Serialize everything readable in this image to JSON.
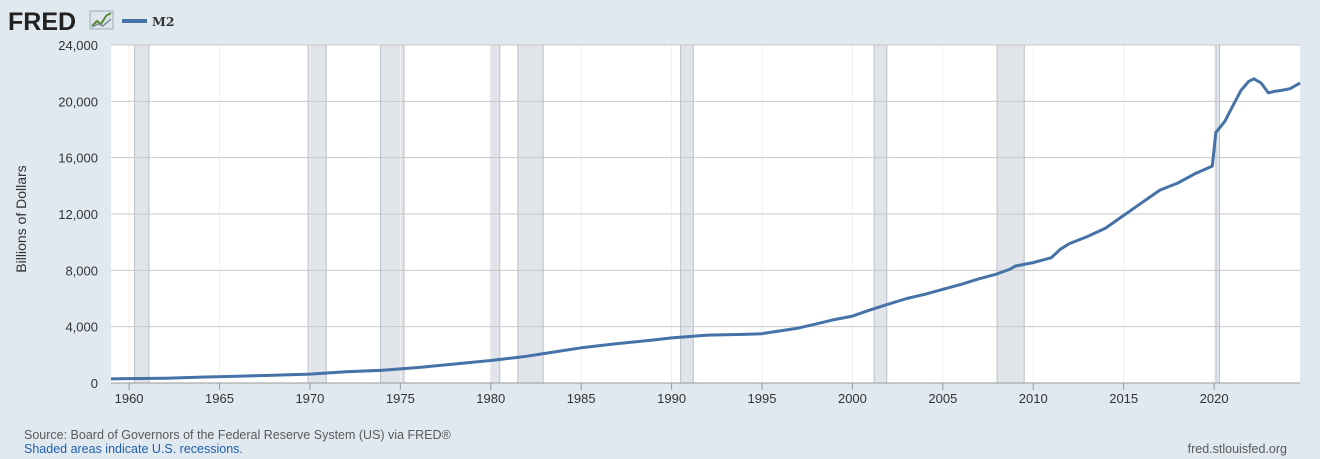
{
  "brand": {
    "name": "FRED"
  },
  "legend": {
    "series_label": "M2",
    "line_color": "#4572a7"
  },
  "colors": {
    "line": "#4572a7",
    "recession": "#e1e5e9",
    "plot_bg": "#ffffff",
    "page_bg": "#e1e9f0"
  },
  "footer": {
    "source": "Source: Board of Governors of the Federal Reserve System (US) via FRED®",
    "note": "Shaded areas indicate U.S. recessions.",
    "site": "fred.stlouisfed.org"
  },
  "chart_data": {
    "type": "line",
    "title": "",
    "xlabel": "",
    "ylabel": "Billions of Dollars",
    "xlim": [
      1959.0,
      2024.75
    ],
    "ylim": [
      0,
      24000
    ],
    "grid": true,
    "legend_position": "top-left",
    "x_ticks": [
      1960,
      1965,
      1970,
      1975,
      1980,
      1985,
      1990,
      1995,
      2000,
      2005,
      2010,
      2015,
      2020
    ],
    "y_ticks": [
      0,
      4000,
      8000,
      12000,
      16000,
      20000,
      24000
    ],
    "y_tick_labels": [
      "0",
      "4,000",
      "8,000",
      "12,000",
      "16,000",
      "20,000",
      "24,000"
    ],
    "recessions": [
      [
        1960.3,
        1961.1
      ],
      [
        1969.9,
        1970.9
      ],
      [
        1973.9,
        1975.2
      ],
      [
        1980.0,
        1980.5
      ],
      [
        1981.5,
        1982.9
      ],
      [
        1990.5,
        1991.2
      ],
      [
        2001.2,
        2001.9
      ],
      [
        2008.0,
        2009.5
      ],
      [
        2020.1,
        2020.3
      ]
    ],
    "series": [
      {
        "name": "M2",
        "x": [
          1959.0,
          1960,
          1962,
          1964,
          1966,
          1968,
          1970,
          1972,
          1974,
          1976,
          1978,
          1980,
          1982,
          1983,
          1985,
          1987,
          1989,
          1990,
          1992,
          1994,
          1995,
          1996,
          1997,
          1998,
          1999,
          2000,
          2001,
          2002,
          2003,
          2004,
          2005,
          2006,
          2007,
          2008,
          2008.75,
          2009,
          2010,
          2011,
          2011.5,
          2012,
          2013,
          2014,
          2015,
          2016,
          2017,
          2018,
          2019,
          2019.9,
          2020.1,
          2020.3,
          2020.6,
          2021,
          2021.5,
          2021.9,
          2022.2,
          2022.6,
          2023.0,
          2023.3,
          2023.8,
          2024.2,
          2024.75
        ],
        "y": [
          290,
          310,
          340,
          420,
          480,
          550,
          630,
          800,
          900,
          1100,
          1350,
          1600,
          1900,
          2100,
          2500,
          2800,
          3050,
          3200,
          3400,
          3450,
          3500,
          3700,
          3900,
          4200,
          4500,
          4750,
          5200,
          5600,
          6000,
          6300,
          6650,
          7000,
          7400,
          7750,
          8100,
          8300,
          8550,
          8900,
          9500,
          9900,
          10400,
          11000,
          11900,
          12800,
          13700,
          14200,
          14900,
          15400,
          17800,
          18100,
          18600,
          19600,
          20800,
          21400,
          21600,
          21300,
          20600,
          20700,
          20800,
          20900,
          21300
        ]
      }
    ]
  }
}
